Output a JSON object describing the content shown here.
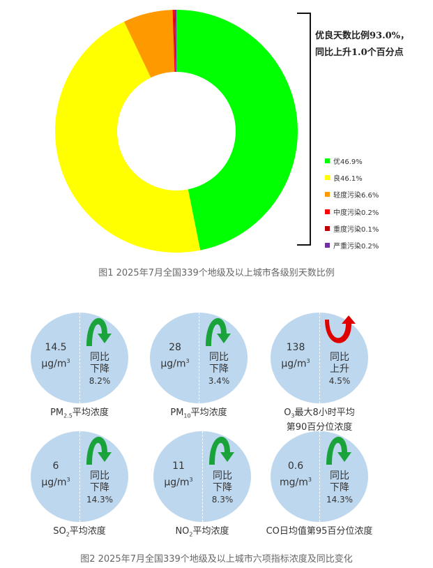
{
  "chart_data": [
    {
      "type": "pie",
      "donut": true,
      "categories": [
        "优",
        "良",
        "轻度污染",
        "中度污染",
        "重度污染",
        "严重污染"
      ],
      "values": [
        46.9,
        46.1,
        6.6,
        0.2,
        0.1,
        0.2
      ],
      "legend": [
        "优46.9%",
        "良46.1%",
        "轻度污染6.6%",
        "中度污染0.2%",
        "重度污染0.1%",
        "严重污染0.2%"
      ],
      "colors": [
        "#00ff00",
        "#ffff00",
        "#ff9900",
        "#ff0000",
        "#c00000",
        "#7030a0"
      ],
      "legend_position": "right",
      "annotation": [
        "优良天数比例93.0%，",
        "同比上升1.0个百分点"
      ],
      "title": "图1 2025年7月全国339个地级及以上城市各级别天数比例"
    },
    {
      "type": "table",
      "title": "图2 2025年7月全国339个地级及以上城市六项指标浓度及同比变化",
      "items": [
        {
          "value": "14.5",
          "unit": "μg/m",
          "sup": "3",
          "change": [
            "同比",
            "下降",
            "8.2%"
          ],
          "direction": "down",
          "label": "PM",
          "label_sub": "2.5",
          "label_rest": "平均浓度"
        },
        {
          "value": "28",
          "unit": "μg/m",
          "sup": "3",
          "change": [
            "同比",
            "下降",
            "3.4%"
          ],
          "direction": "down",
          "label": "PM",
          "label_sub": "10",
          "label_rest": "平均浓度"
        },
        {
          "value": "138",
          "unit": "μg/m",
          "sup": "3",
          "change": [
            "同比",
            "上升",
            "4.5%"
          ],
          "direction": "up",
          "label": "O",
          "label_sub": "3",
          "label_rest": "最大8小时平均",
          "label2": "第90百分位浓度"
        },
        {
          "value": "6",
          "unit": "μg/m",
          "sup": "3",
          "change": [
            "同比",
            "下降",
            "14.3%"
          ],
          "direction": "down",
          "label": "SO",
          "label_sub": "2",
          "label_rest": "平均浓度"
        },
        {
          "value": "11",
          "unit": "μg/m",
          "sup": "3",
          "change": [
            "同比",
            "下降",
            "8.3%"
          ],
          "direction": "down",
          "label": "NO",
          "label_sub": "2",
          "label_rest": "平均浓度"
        },
        {
          "value": "0.6",
          "unit": "mg/m",
          "sup": "3",
          "change": [
            "同比",
            "下降",
            "14.3%"
          ],
          "direction": "down",
          "label": "CO日均值第95百分位浓度",
          "label_sub": "",
          "label_rest": ""
        }
      ]
    }
  ]
}
